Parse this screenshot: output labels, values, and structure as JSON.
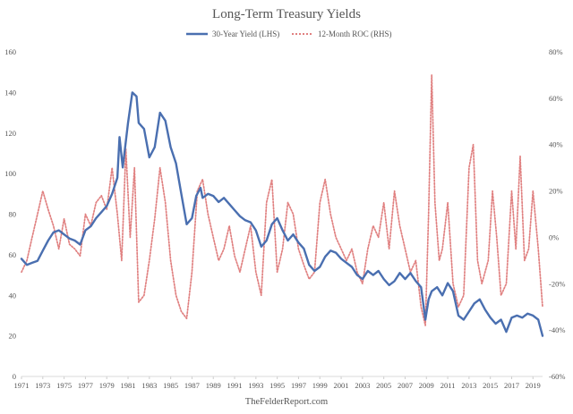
{
  "chart_data": {
    "type": "line",
    "title": "Long-Term Treasury Yields",
    "source": "TheFelderReport.com",
    "legend_position": "top-center",
    "grid": false,
    "x_range": [
      1971,
      2019.9
    ],
    "x_ticks": [
      "1971",
      "1973",
      "1975",
      "1977",
      "1979",
      "1981",
      "1983",
      "1985",
      "1987",
      "1989",
      "1991",
      "1993",
      "1995",
      "1997",
      "1999",
      "2001",
      "2003",
      "2005",
      "2007",
      "2009",
      "2011",
      "2013",
      "2015",
      "2017",
      "2019"
    ],
    "y_left": {
      "range": [
        0,
        160
      ],
      "ticks": [
        "0",
        "20",
        "40",
        "60",
        "80",
        "100",
        "120",
        "140",
        "160"
      ],
      "label": "30-Year Yield (LHS)"
    },
    "y_right": {
      "range": [
        -60,
        80
      ],
      "ticks": [
        "-60%",
        "-40%",
        "-20%",
        "0%",
        "20%",
        "40%",
        "60%",
        "80%"
      ],
      "label": "12-Month ROC (RHS)"
    },
    "series": [
      {
        "name": "30-Year Yield (LHS)",
        "axis": "left",
        "color": "#4a6fb0",
        "style": "solid",
        "x": [
          1971.0,
          1971.5,
          1972.0,
          1972.5,
          1973.0,
          1973.5,
          1974.0,
          1974.5,
          1975.0,
          1975.5,
          1976.0,
          1976.5,
          1977.0,
          1977.5,
          1978.0,
          1978.5,
          1979.0,
          1979.5,
          1980.0,
          1980.2,
          1980.5,
          1981.0,
          1981.4,
          1981.8,
          1982.0,
          1982.5,
          1983.0,
          1983.5,
          1984.0,
          1984.5,
          1985.0,
          1985.5,
          1986.0,
          1986.5,
          1987.0,
          1987.4,
          1987.8,
          1988.0,
          1988.5,
          1989.0,
          1989.5,
          1990.0,
          1990.5,
          1991.0,
          1991.5,
          1992.0,
          1992.5,
          1993.0,
          1993.5,
          1994.0,
          1994.5,
          1995.0,
          1995.5,
          1996.0,
          1996.5,
          1997.0,
          1997.5,
          1998.0,
          1998.5,
          1999.0,
          1999.5,
          2000.0,
          2000.5,
          2001.0,
          2001.5,
          2002.0,
          2002.5,
          2003.0,
          2003.5,
          2004.0,
          2004.5,
          2005.0,
          2005.5,
          2006.0,
          2006.5,
          2007.0,
          2007.5,
          2008.0,
          2008.5,
          2008.9,
          2009.2,
          2009.5,
          2010.0,
          2010.5,
          2011.0,
          2011.5,
          2012.0,
          2012.5,
          2013.0,
          2013.5,
          2014.0,
          2014.5,
          2015.0,
          2015.5,
          2016.0,
          2016.5,
          2017.0,
          2017.5,
          2018.0,
          2018.5,
          2019.0,
          2019.5,
          2019.9
        ],
        "values": [
          58,
          55,
          56,
          57,
          62,
          67,
          71,
          72,
          70,
          68,
          67,
          65,
          72,
          74,
          78,
          81,
          84,
          90,
          98,
          118,
          103,
          125,
          140,
          138,
          125,
          122,
          108,
          113,
          130,
          126,
          113,
          105,
          90,
          75,
          78,
          89,
          93,
          88,
          90,
          89,
          86,
          88,
          85,
          82,
          79,
          77,
          76,
          72,
          64,
          67,
          75,
          78,
          72,
          67,
          70,
          66,
          63,
          55,
          52,
          54,
          59,
          62,
          61,
          58,
          56,
          54,
          50,
          48,
          52,
          50,
          52,
          48,
          45,
          47,
          51,
          48,
          51,
          47,
          44,
          28,
          38,
          42,
          44,
          40,
          46,
          42,
          30,
          28,
          32,
          36,
          38,
          33,
          29,
          26,
          28,
          22,
          29,
          30,
          29,
          31,
          30,
          28,
          20
        ]
      },
      {
        "name": "12-Month ROC (RHS)",
        "axis": "right",
        "color": "#e08080",
        "style": "dotted",
        "x": [
          1971.0,
          1971.5,
          1972.0,
          1972.5,
          1973.0,
          1973.5,
          1974.0,
          1974.5,
          1975.0,
          1975.5,
          1976.0,
          1976.5,
          1977.0,
          1977.5,
          1978.0,
          1978.5,
          1979.0,
          1979.5,
          1980.0,
          1980.4,
          1980.8,
          1981.2,
          1981.6,
          1982.0,
          1982.5,
          1983.0,
          1983.5,
          1984.0,
          1984.5,
          1985.0,
          1985.5,
          1986.0,
          1986.5,
          1987.0,
          1987.5,
          1988.0,
          1988.5,
          1989.0,
          1989.5,
          1990.0,
          1990.5,
          1991.0,
          1991.5,
          1992.0,
          1992.5,
          1993.0,
          1993.5,
          1994.0,
          1994.5,
          1995.0,
          1995.5,
          1996.0,
          1996.5,
          1997.0,
          1997.5,
          1998.0,
          1998.5,
          1999.0,
          1999.5,
          2000.0,
          2000.5,
          2001.0,
          2001.5,
          2002.0,
          2002.5,
          2003.0,
          2003.5,
          2004.0,
          2004.5,
          2005.0,
          2005.5,
          2006.0,
          2006.5,
          2007.0,
          2007.5,
          2008.0,
          2008.5,
          2008.9,
          2009.2,
          2009.5,
          2009.8,
          2010.2,
          2010.5,
          2011.0,
          2011.5,
          2012.0,
          2012.5,
          2013.0,
          2013.4,
          2013.8,
          2014.2,
          2014.8,
          2015.2,
          2015.6,
          2016.0,
          2016.5,
          2017.0,
          2017.4,
          2017.8,
          2018.2,
          2018.6,
          2019.0,
          2019.5,
          2019.9
        ],
        "values": [
          -15,
          -10,
          0,
          10,
          20,
          12,
          5,
          -5,
          8,
          -3,
          -5,
          -8,
          10,
          5,
          15,
          18,
          12,
          30,
          10,
          -10,
          38,
          0,
          30,
          -28,
          -25,
          -10,
          8,
          30,
          15,
          -10,
          -25,
          -32,
          -35,
          -15,
          20,
          25,
          10,
          0,
          -10,
          -5,
          5,
          -8,
          -15,
          -5,
          5,
          -15,
          -25,
          15,
          25,
          -15,
          -5,
          15,
          10,
          -5,
          -12,
          -18,
          -15,
          15,
          25,
          10,
          0,
          -5,
          -10,
          -5,
          -15,
          -20,
          -5,
          5,
          0,
          15,
          -5,
          20,
          5,
          -5,
          -15,
          -10,
          -30,
          -38,
          10,
          70,
          15,
          -10,
          -5,
          15,
          -20,
          -30,
          -25,
          30,
          40,
          -10,
          -20,
          -10,
          20,
          0,
          -25,
          -20,
          20,
          -5,
          35,
          -10,
          -5,
          20,
          -5,
          -30
        ]
      }
    ]
  }
}
